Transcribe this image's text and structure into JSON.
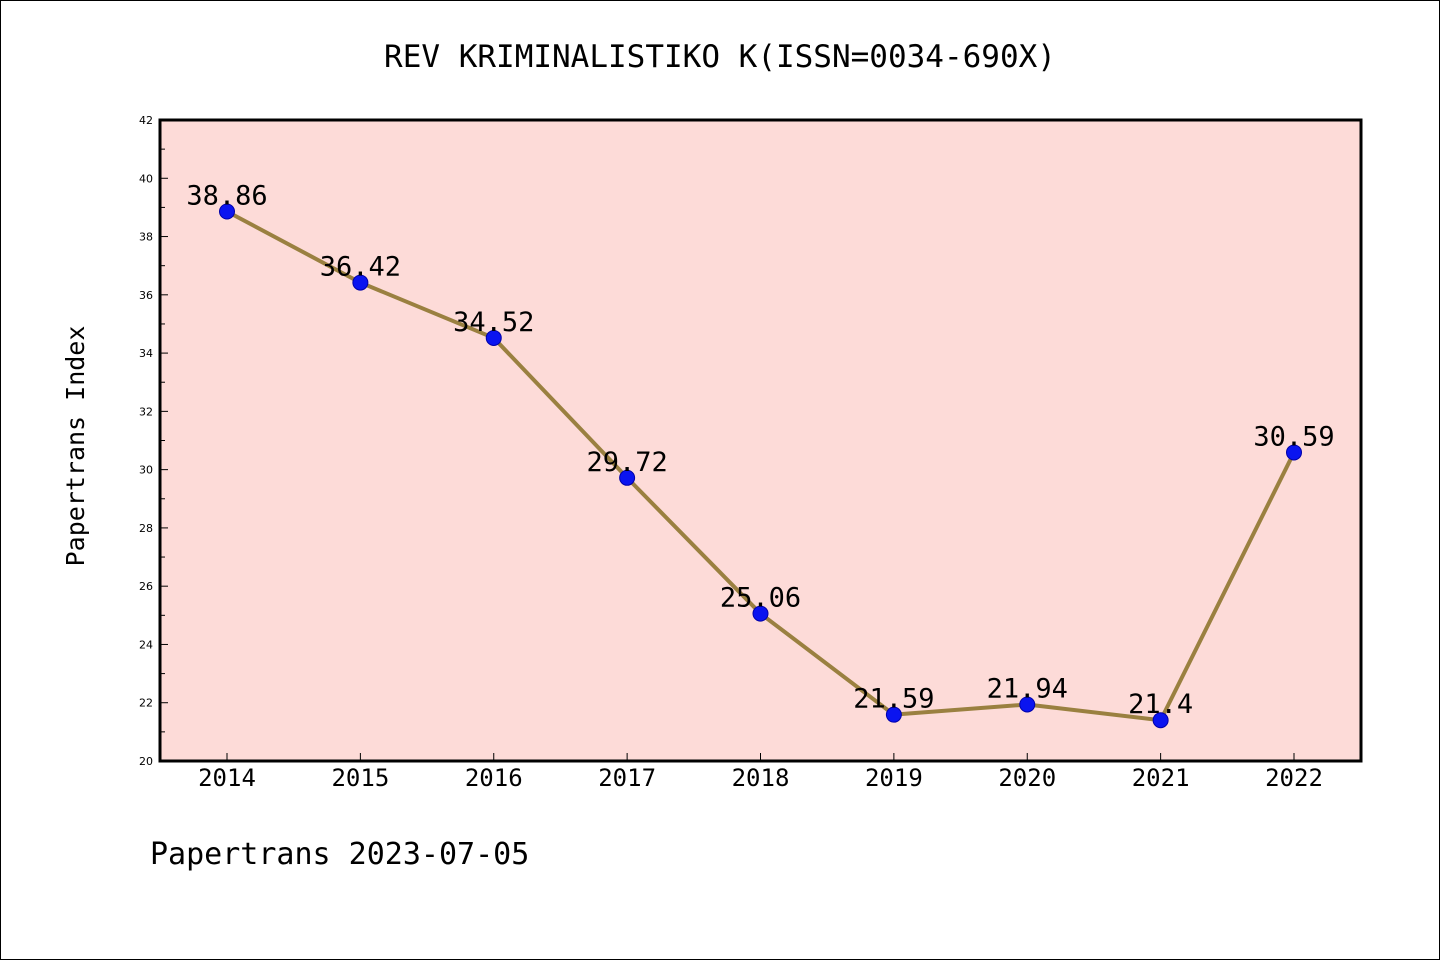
{
  "chart_data": {
    "type": "line",
    "title": "REV KRIMINALISTIKO K(ISSN=0034-690X)",
    "ylabel": "Papertrans Index",
    "xlabel": "",
    "footer": "Papertrans 2023-07-05",
    "categories": [
      "2014",
      "2015",
      "2016",
      "2017",
      "2018",
      "2019",
      "2020",
      "2021",
      "2022"
    ],
    "values": [
      38.86,
      36.42,
      34.52,
      29.72,
      25.06,
      21.59,
      21.94,
      21.4,
      30.59
    ],
    "value_labels": [
      "38.86",
      "36.42",
      "34.52",
      "29.72",
      "25.06",
      "21.59",
      "21.94",
      "21.4",
      "30.59"
    ],
    "ylim": [
      20,
      42
    ],
    "yticks": [
      20,
      22,
      24,
      26,
      28,
      30,
      32,
      34,
      36,
      38,
      40,
      42
    ],
    "grid": false,
    "legend": "none",
    "colors": {
      "plot_background": "#fddbd8",
      "line": "#9a8040",
      "marker": "#0a14f0",
      "marker_edge": "#0000aa"
    }
  }
}
